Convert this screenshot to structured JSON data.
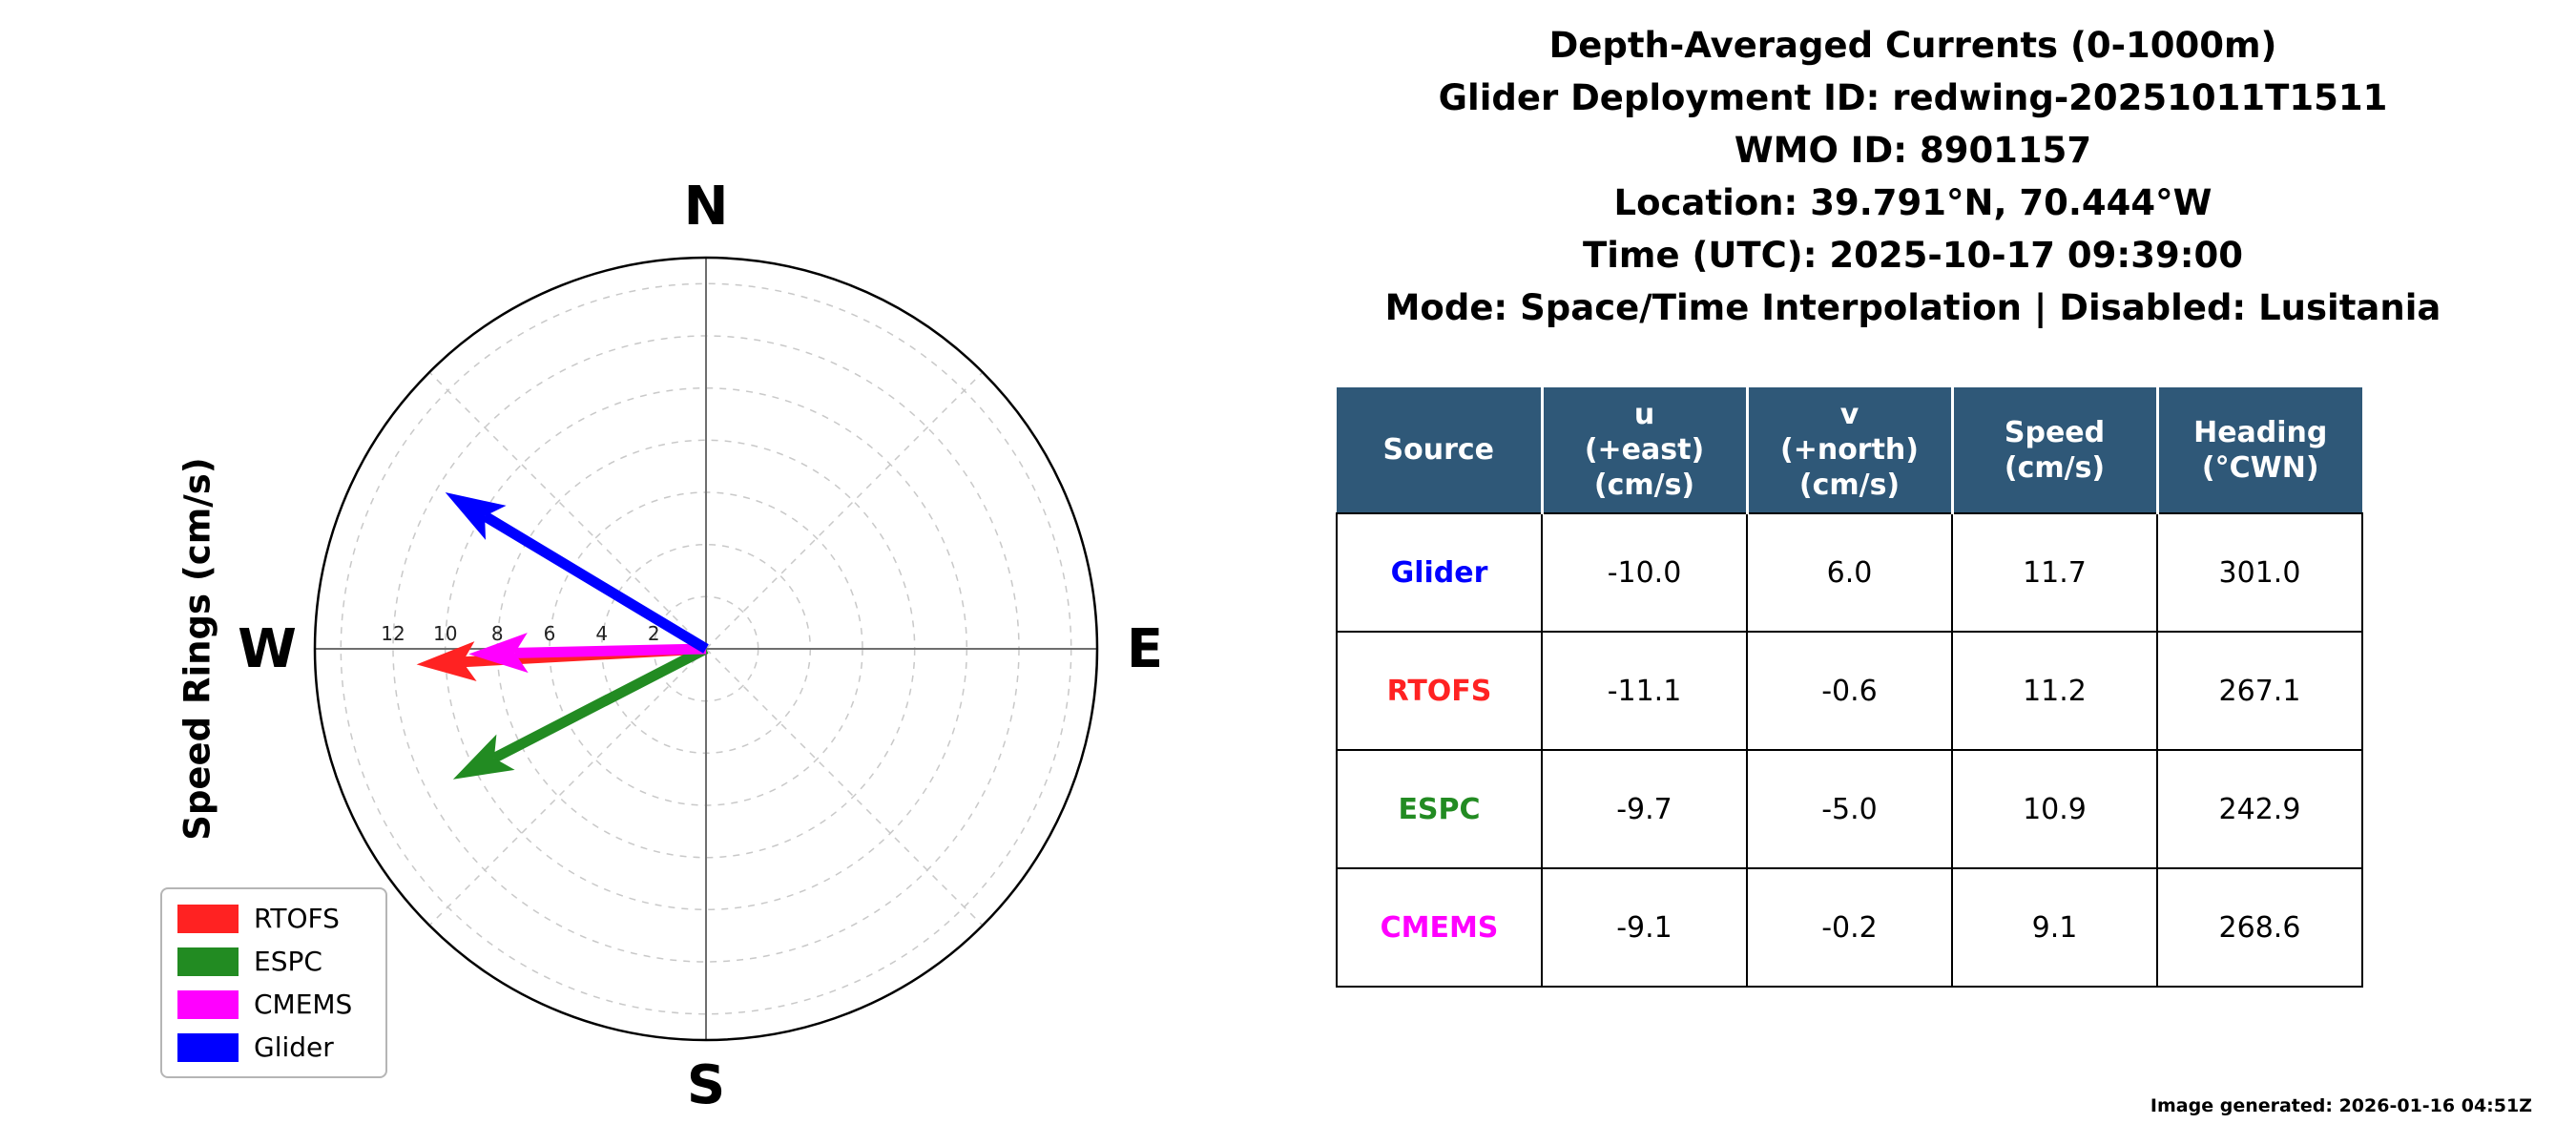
{
  "header": {
    "lines": [
      "Depth-Averaged Currents (0-1000m)",
      "Glider Deployment ID: redwing-20251011T1511",
      "WMO ID: 8901157",
      "Location: 39.791°N, 70.444°W",
      "Time (UTC): 2025-10-17 09:39:00",
      "Mode: Space/Time Interpolation | Disabled: Lusitania"
    ]
  },
  "compass": {
    "axis_title": "Speed Rings (cm/s)",
    "cardinal": {
      "n": "N",
      "e": "E",
      "s": "S",
      "w": "W"
    },
    "rmax": 15,
    "ring_step": 2,
    "ring_labels": [
      12,
      10,
      8,
      6,
      4,
      2
    ],
    "grid_color": "#c9c9c9",
    "axis_color": "#6e6e6e",
    "outline_color": "#000000"
  },
  "legend": {
    "items": [
      {
        "label": "RTOFS",
        "color": "#ff2222"
      },
      {
        "label": "ESPC",
        "color": "#228b22"
      },
      {
        "label": "CMEMS",
        "color": "#ff00ff"
      },
      {
        "label": "Glider",
        "color": "#0000ff"
      }
    ]
  },
  "chart_data": {
    "type": "polar-quiver",
    "title": "Depth-Averaged Currents (0-1000m)",
    "radial_axis_label": "Speed Rings (cm/s)",
    "radial_unit": "cm/s",
    "ring_values_cms": [
      2,
      4,
      6,
      8,
      10,
      12
    ],
    "rmax_cms": 15,
    "vectors": [
      {
        "source": "Glider",
        "u": -10.0,
        "v": 6.0,
        "speed": 11.7,
        "heading_cwn": 301.0,
        "color": "#0000ff"
      },
      {
        "source": "RTOFS",
        "u": -11.1,
        "v": -0.6,
        "speed": 11.2,
        "heading_cwn": 267.1,
        "color": "#ff2222"
      },
      {
        "source": "ESPC",
        "u": -9.7,
        "v": -5.0,
        "speed": 10.9,
        "heading_cwn": 242.9,
        "color": "#228b22"
      },
      {
        "source": "CMEMS",
        "u": -9.1,
        "v": -0.2,
        "speed": 9.1,
        "heading_cwn": 268.6,
        "color": "#ff00ff"
      }
    ],
    "draw_order": [
      "RTOFS",
      "ESPC",
      "CMEMS",
      "Glider"
    ]
  },
  "table": {
    "header_bg": "#2f5878",
    "header_text_color": "#ffffff",
    "headers": [
      [
        "Source"
      ],
      [
        "u",
        "(+east)",
        "(cm/s)"
      ],
      [
        "v",
        "(+north)",
        "(cm/s)"
      ],
      [
        "Speed",
        "(cm/s)"
      ],
      [
        "Heading",
        "(°CWN)"
      ]
    ],
    "rows": [
      {
        "source": "Glider",
        "color": "#0000ff",
        "u": "-10.0",
        "v": "6.0",
        "speed": "11.7",
        "heading": "301.0"
      },
      {
        "source": "RTOFS",
        "color": "#ff2222",
        "u": "-11.1",
        "v": "-0.6",
        "speed": "11.2",
        "heading": "267.1"
      },
      {
        "source": "ESPC",
        "color": "#228b22",
        "u": "-9.7",
        "v": "-5.0",
        "speed": "10.9",
        "heading": "242.9"
      },
      {
        "source": "CMEMS",
        "color": "#ff00ff",
        "u": "-9.1",
        "v": "-0.2",
        "speed": "9.1",
        "heading": "268.6"
      }
    ]
  },
  "footer": {
    "generated": "Image generated: 2026-01-16 04:51Z"
  }
}
